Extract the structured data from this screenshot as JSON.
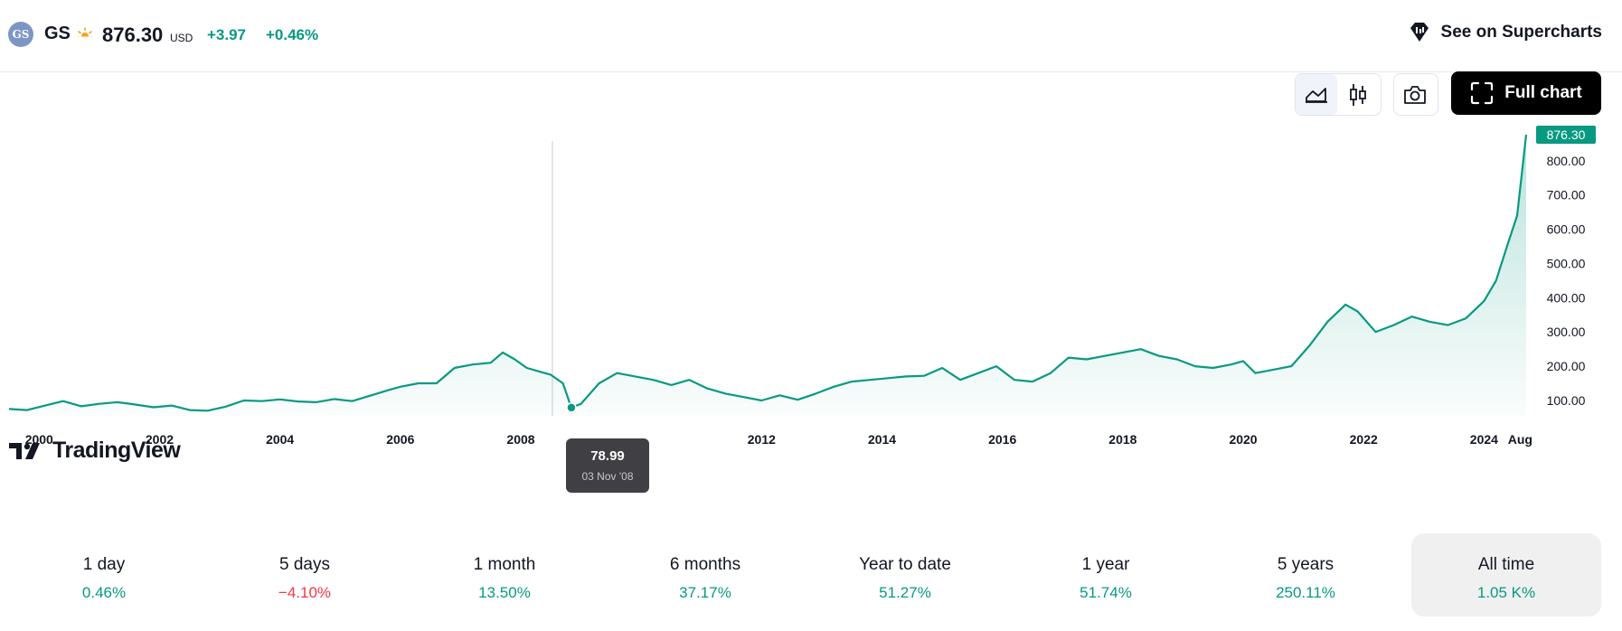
{
  "header": {
    "logo_text": "GS",
    "ticker": "GS",
    "price": "876.30",
    "currency": "USD",
    "change_abs": "+3.97",
    "change_pct": "+0.46%",
    "supercharts_label": "See on Supercharts"
  },
  "toolbar": {
    "line_icon": "line-chart-icon",
    "candles_icon": "candles-icon",
    "camera_icon": "camera-icon",
    "full_chart_label": "Full chart"
  },
  "chart_data": {
    "type": "area",
    "x_ticks": [
      "2000",
      "2002",
      "2004",
      "2006",
      "2008",
      "2012",
      "2014",
      "2016",
      "2018",
      "2020",
      "2022",
      "2024",
      "Aug"
    ],
    "y_ticks": [
      "100.00",
      "200.00",
      "300.00",
      "400.00",
      "500.00",
      "600.00",
      "700.00",
      "800.00"
    ],
    "ylim": [
      55,
      900
    ],
    "xlim": [
      1999.5,
      2024.7
    ],
    "last_price_label": "876.30",
    "line_color": "#089981",
    "x": [
      1999.5,
      1999.8,
      2000.1,
      2000.4,
      2000.7,
      2001.0,
      2001.3,
      2001.6,
      2001.9,
      2002.2,
      2002.5,
      2002.8,
      2003.1,
      2003.4,
      2003.7,
      2004.0,
      2004.3,
      2004.6,
      2004.9,
      2005.2,
      2005.5,
      2005.8,
      2006.0,
      2006.3,
      2006.6,
      2006.9,
      2007.2,
      2007.5,
      2007.7,
      2007.9,
      2008.1,
      2008.3,
      2008.5,
      2008.7,
      2008.84,
      2009.0,
      2009.3,
      2009.6,
      2009.9,
      2010.2,
      2010.5,
      2010.8,
      2011.1,
      2011.4,
      2011.7,
      2012.0,
      2012.3,
      2012.6,
      2012.9,
      2013.2,
      2013.5,
      2013.8,
      2014.1,
      2014.4,
      2014.7,
      2015.0,
      2015.3,
      2015.6,
      2015.9,
      2016.2,
      2016.5,
      2016.8,
      2017.1,
      2017.4,
      2017.7,
      2018.0,
      2018.3,
      2018.6,
      2018.9,
      2019.2,
      2019.5,
      2019.8,
      2020.0,
      2020.2,
      2020.5,
      2020.8,
      2021.1,
      2021.4,
      2021.7,
      2021.9,
      2022.2,
      2022.5,
      2022.8,
      2023.1,
      2023.4,
      2023.7,
      2024.0,
      2024.2,
      2024.4,
      2024.55,
      2024.7
    ],
    "y": [
      75,
      72,
      85,
      98,
      83,
      90,
      95,
      88,
      80,
      85,
      72,
      70,
      82,
      100,
      98,
      103,
      97,
      95,
      104,
      98,
      114,
      130,
      140,
      150,
      150,
      195,
      205,
      210,
      240,
      220,
      195,
      185,
      175,
      150,
      78.99,
      90,
      150,
      180,
      170,
      160,
      145,
      160,
      135,
      120,
      110,
      100,
      115,
      102,
      120,
      140,
      155,
      160,
      165,
      170,
      172,
      195,
      160,
      180,
      200,
      160,
      155,
      180,
      225,
      220,
      230,
      240,
      250,
      230,
      220,
      200,
      195,
      205,
      215,
      180,
      190,
      200,
      260,
      330,
      380,
      360,
      300,
      320,
      345,
      330,
      320,
      340,
      390,
      450,
      560,
      640,
      876.3
    ]
  },
  "tooltip": {
    "value": "78.99",
    "date": "03 Nov '08"
  },
  "watermark": "TradingView",
  "periods": [
    {
      "label": "1 day",
      "value": "0.46%",
      "sign": "pos"
    },
    {
      "label": "5 days",
      "value": "−4.10%",
      "sign": "neg"
    },
    {
      "label": "1 month",
      "value": "13.50%",
      "sign": "pos"
    },
    {
      "label": "6 months",
      "value": "37.17%",
      "sign": "pos"
    },
    {
      "label": "Year to date",
      "value": "51.27%",
      "sign": "pos"
    },
    {
      "label": "1 year",
      "value": "51.74%",
      "sign": "pos"
    },
    {
      "label": "5 years",
      "value": "250.11%",
      "sign": "pos"
    },
    {
      "label": "All time",
      "value": "1.05 K%",
      "sign": "pos"
    }
  ]
}
